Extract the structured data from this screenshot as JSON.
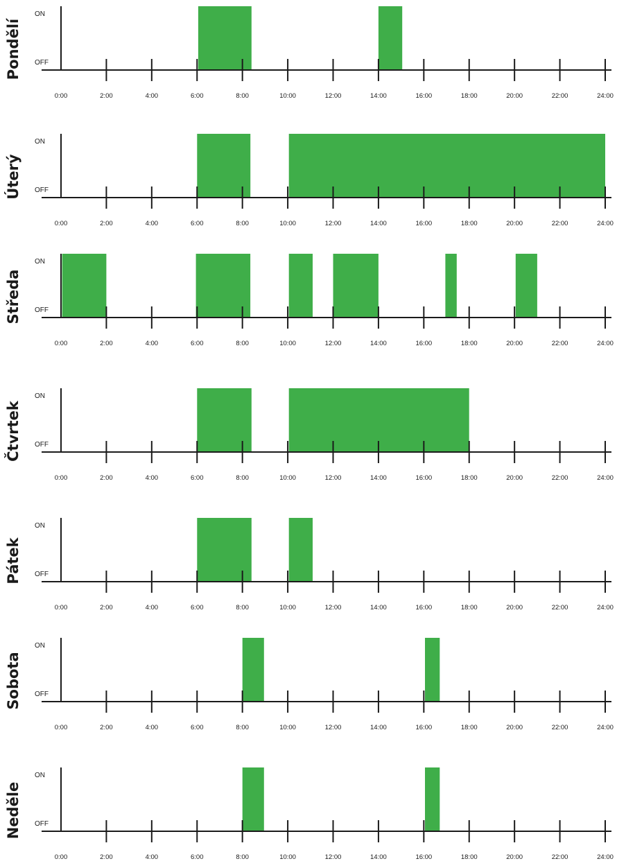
{
  "chart_data": {
    "type": "bar",
    "x_unit": "hour",
    "xlim": [
      0,
      24
    ],
    "x_ticks": [
      "0:00",
      "2:00",
      "4:00",
      "6:00",
      "8:00",
      "10:00",
      "12:00",
      "14:00",
      "16:00",
      "18:00",
      "20:00",
      "22:00",
      "24:00"
    ],
    "on_label": "ON",
    "off_label": "OFF",
    "bar_color": "#3fae49",
    "days": [
      {
        "name": "Pondělí",
        "intervals": [
          [
            6.05,
            8.4
          ],
          [
            14.0,
            15.05
          ]
        ]
      },
      {
        "name": "Úterý",
        "intervals": [
          [
            6.0,
            8.35
          ],
          [
            10.05,
            24.0
          ]
        ]
      },
      {
        "name": "Středa",
        "intervals": [
          [
            0.05,
            2.0
          ],
          [
            5.95,
            8.35
          ],
          [
            10.05,
            11.1
          ],
          [
            12.0,
            14.0
          ],
          [
            16.95,
            17.45
          ],
          [
            20.05,
            21.0
          ]
        ]
      },
      {
        "name": "Čtvrtek",
        "intervals": [
          [
            6.0,
            8.4
          ],
          [
            10.05,
            18.0
          ]
        ]
      },
      {
        "name": "Pátek",
        "intervals": [
          [
            6.0,
            8.4
          ],
          [
            10.05,
            11.1
          ]
        ]
      },
      {
        "name": "Sobota",
        "intervals": [
          [
            8.0,
            8.95
          ],
          [
            16.05,
            16.7
          ]
        ]
      },
      {
        "name": "Neděle",
        "intervals": [
          [
            8.0,
            8.95
          ],
          [
            16.05,
            16.7
          ]
        ]
      }
    ]
  }
}
